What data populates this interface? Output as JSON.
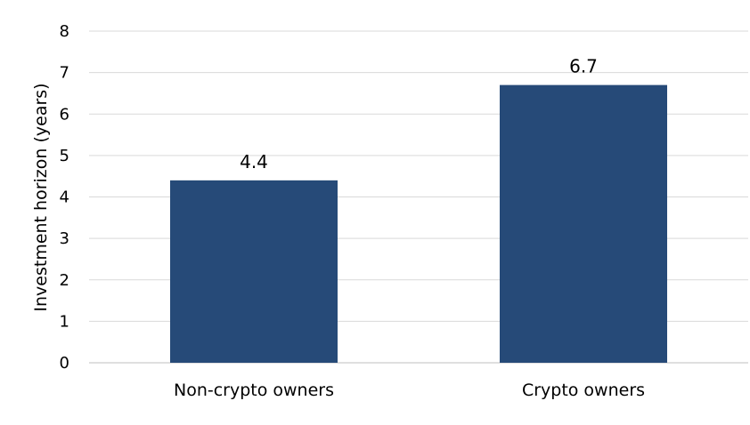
{
  "chart_data": {
    "type": "bar",
    "title": "",
    "xlabel": "",
    "ylabel": "Investment horizon (years)",
    "categories": [
      "Non-crypto owners",
      "Crypto owners"
    ],
    "values": [
      4.4,
      6.7
    ],
    "data_labels": [
      "4.4",
      "6.7"
    ],
    "ylim": [
      0,
      8
    ],
    "yticks": [
      0,
      1,
      2,
      3,
      4,
      5,
      6,
      7,
      8
    ],
    "ytick_labels": [
      "0",
      "1",
      "2",
      "3",
      "4",
      "5",
      "6",
      "7",
      "8"
    ],
    "grid": true,
    "legend": "none",
    "bar_color": "#264a78"
  }
}
